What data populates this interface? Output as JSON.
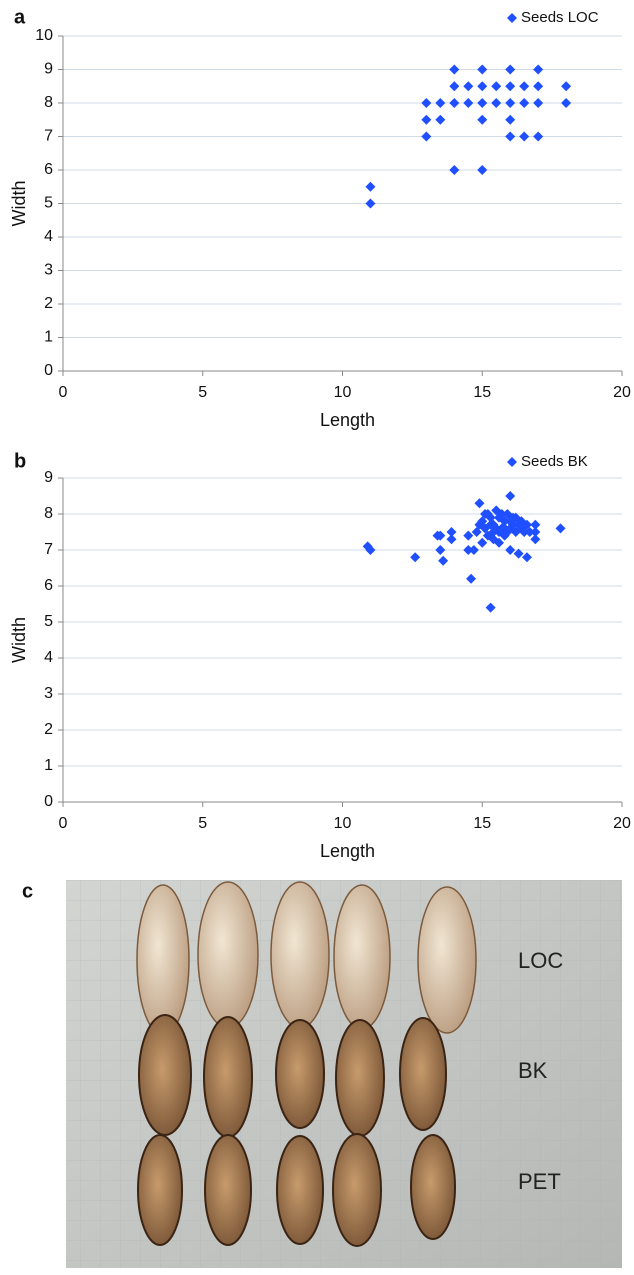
{
  "chart_data": [
    {
      "type": "scatter",
      "panel_label": "a",
      "x_label": "Length",
      "y_label": "Width",
      "xlim": [
        0,
        20
      ],
      "xticks": [
        0,
        5,
        10,
        15,
        20
      ],
      "ylim": [
        0,
        10
      ],
      "yticks": [
        0,
        1,
        2,
        3,
        4,
        5,
        6,
        7,
        8,
        9,
        10
      ],
      "grid": true,
      "legend": "top-right",
      "series": [
        {
          "name": "Seeds LOC",
          "color": "#1f4fff",
          "x": [
            11,
            11,
            13,
            13,
            13,
            13.5,
            13.5,
            14,
            14,
            14,
            14,
            14.5,
            14.5,
            15,
            15,
            15,
            15,
            15,
            15.5,
            15.5,
            16,
            16,
            16,
            16,
            16,
            16.5,
            16.5,
            16.5,
            17,
            17,
            17,
            17,
            18,
            18
          ],
          "values": [
            5.5,
            5,
            8,
            7.5,
            7,
            8,
            7.5,
            9,
            8.5,
            8,
            6,
            8.5,
            8,
            9,
            8.5,
            8,
            7.5,
            6,
            8.5,
            8,
            9,
            8.5,
            8,
            7.5,
            7,
            8.5,
            8,
            7,
            9,
            8.5,
            8,
            7,
            8.5,
            8
          ]
        }
      ]
    },
    {
      "type": "scatter",
      "panel_label": "b",
      "x_label": "Length",
      "y_label": "Width",
      "xlim": [
        0,
        20
      ],
      "xticks": [
        0,
        5,
        10,
        15,
        20
      ],
      "ylim": [
        0,
        9
      ],
      "yticks": [
        0,
        1,
        2,
        3,
        4,
        5,
        6,
        7,
        8,
        9
      ],
      "grid": true,
      "legend": "top-right",
      "series": [
        {
          "name": "Seeds BK",
          "color": "#1f4fff",
          "x": [
            10.9,
            11,
            12.6,
            13.4,
            13.5,
            13.5,
            13.6,
            13.9,
            13.9,
            14.5,
            14.5,
            14.6,
            14.7,
            14.8,
            14.9,
            15.3,
            16.6,
            17.8,
            16.9,
            16.9,
            16.9,
            16,
            16,
            16.3,
            15,
            15.1,
            15.2,
            15.3,
            15.4,
            15.5,
            15.6,
            15.7,
            15.8,
            15.9,
            16.1,
            16.2,
            16.4,
            15.2,
            15.4,
            15.6,
            15.8,
            16,
            16.2,
            16.4,
            15.1,
            15.3,
            15.5,
            15.7,
            15.9,
            16.1,
            16.3,
            16.5,
            15.4,
            15.6,
            15.8,
            16,
            16.6,
            14.9,
            15,
            16.7
          ],
          "values": [
            7.1,
            7,
            6.8,
            7.4,
            7.4,
            7,
            6.7,
            7.5,
            7.3,
            7.4,
            7,
            6.2,
            7,
            7.5,
            8.3,
            5.4,
            6.8,
            7.6,
            7.5,
            7.3,
            7.7,
            8.5,
            7,
            6.9,
            7.8,
            7.6,
            8,
            7.7,
            7.5,
            8.1,
            7.9,
            7.6,
            7.8,
            8,
            7.7,
            7.9,
            7.6,
            7.4,
            7.7,
            7.5,
            7.4,
            7.8,
            7.5,
            7.8,
            8,
            7.9,
            7.6,
            8,
            7.5,
            7.9,
            7.7,
            7.5,
            7.3,
            7.2,
            7.6,
            7.6,
            7.7,
            7.7,
            7.2,
            7.5
          ]
        }
      ]
    }
  ],
  "photo": {
    "panel_label": "c",
    "labels": [
      "LOC",
      "BK",
      "PET"
    ]
  }
}
